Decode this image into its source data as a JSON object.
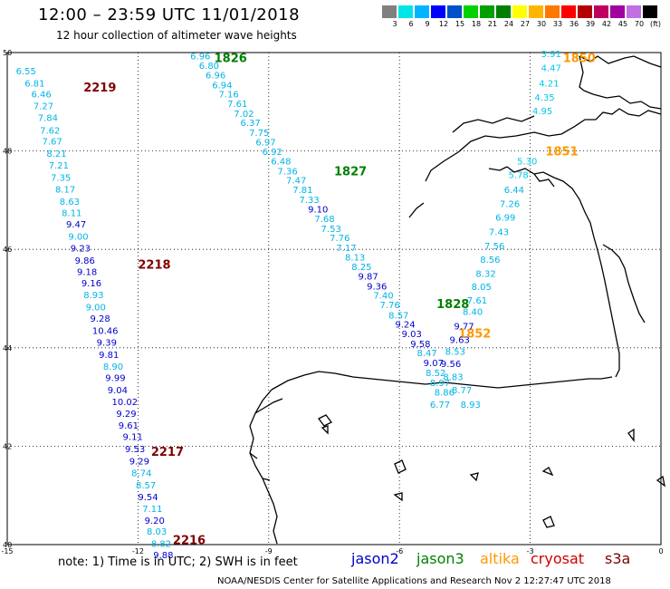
{
  "header": {
    "title": "12:00 – 23:59 UTC 11/01/2018",
    "subtitle": "12 hour collection of altimeter wave heights"
  },
  "color_scale": {
    "labels": [
      "3",
      "6",
      "9",
      "12",
      "15",
      "18",
      "21",
      "24",
      "27",
      "30",
      "33",
      "36",
      "39",
      "42",
      "45",
      "70",
      "(ft)"
    ],
    "colors": [
      "#808080",
      "#00e5e5",
      "#00b4ff",
      "#0000ff",
      "#0050c8",
      "#00d200",
      "#00a000",
      "#008000",
      "#ffff00",
      "#ffb400",
      "#ff7800",
      "#ff0000",
      "#b40000",
      "#c00060",
      "#a000a0",
      "#c070e0",
      "#000000"
    ]
  },
  "axes": {
    "x_ticks": [
      "-15",
      "-12",
      "-9",
      "-6",
      "-3",
      "0"
    ],
    "y_ticks": [
      "50",
      "48",
      "46",
      "44",
      "42",
      "40"
    ],
    "lon_range": [
      -15,
      0
    ],
    "lat_range": [
      40,
      50
    ]
  },
  "colors": {
    "jason2": "#0000cc",
    "jason3": "#008000",
    "altika": "#ff9900",
    "cryosat": "#cc0000",
    "s3a": "#800000"
  },
  "track_times": [
    {
      "label": "2219",
      "satellite": "s3a",
      "lon": -13.25,
      "lat": 49.3
    },
    {
      "label": "2218",
      "satellite": "s3a",
      "lon": -12.0,
      "lat": 45.7
    },
    {
      "label": "2217",
      "satellite": "s3a",
      "lon": -11.7,
      "lat": 41.9
    },
    {
      "label": "2216",
      "satellite": "s3a",
      "lon": -11.2,
      "lat": 40.1
    },
    {
      "label": "1826",
      "satellite": "jason3",
      "lon": -10.25,
      "lat": 49.9
    },
    {
      "label": "1827",
      "satellite": "jason3",
      "lon": -7.5,
      "lat": 47.6
    },
    {
      "label": "1828",
      "satellite": "jason3",
      "lon": -5.15,
      "lat": 44.9
    },
    {
      "label": "1850",
      "satellite": "altika",
      "lon": -2.25,
      "lat": 49.9
    },
    {
      "label": "1851",
      "satellite": "altika",
      "lon": -2.65,
      "lat": 48.0
    },
    {
      "label": "1852",
      "satellite": "altika",
      "lon": -4.65,
      "lat": 44.3
    }
  ],
  "measurements": [
    {
      "v": "6.55",
      "lon": -14.8,
      "lat": 49.63,
      "band": "6"
    },
    {
      "v": "6.81",
      "lon": -14.6,
      "lat": 49.38,
      "band": "6"
    },
    {
      "v": "6.46",
      "lon": -14.45,
      "lat": 49.16,
      "band": "6"
    },
    {
      "v": "7.27",
      "lon": -14.4,
      "lat": 48.92,
      "band": "6"
    },
    {
      "v": "7.84",
      "lon": -14.3,
      "lat": 48.68,
      "band": "6"
    },
    {
      "v": "7.62",
      "lon": -14.25,
      "lat": 48.43,
      "band": "6"
    },
    {
      "v": "7.67",
      "lon": -14.2,
      "lat": 48.2,
      "band": "6"
    },
    {
      "v": "8.21",
      "lon": -14.1,
      "lat": 47.96,
      "band": "6"
    },
    {
      "v": "7.21",
      "lon": -14.05,
      "lat": 47.72,
      "band": "6"
    },
    {
      "v": "7.35",
      "lon": -14.0,
      "lat": 47.47,
      "band": "6"
    },
    {
      "v": "8.17",
      "lon": -13.9,
      "lat": 47.23,
      "band": "6"
    },
    {
      "v": "8.63",
      "lon": -13.8,
      "lat": 46.98,
      "band": "6"
    },
    {
      "v": "8.11",
      "lon": -13.75,
      "lat": 46.75,
      "band": "6"
    },
    {
      "v": "9.47",
      "lon": -13.65,
      "lat": 46.52,
      "band": "9"
    },
    {
      "v": "9.00",
      "lon": -13.6,
      "lat": 46.27,
      "band": "6"
    },
    {
      "v": "9.23",
      "lon": -13.55,
      "lat": 46.03,
      "band": "9"
    },
    {
      "v": "9.86",
      "lon": -13.45,
      "lat": 45.78,
      "band": "9"
    },
    {
      "v": "9.18",
      "lon": -13.4,
      "lat": 45.55,
      "band": "9"
    },
    {
      "v": "9.16",
      "lon": -13.3,
      "lat": 45.32,
      "band": "9"
    },
    {
      "v": "8.93",
      "lon": -13.25,
      "lat": 45.08,
      "band": "6"
    },
    {
      "v": "9.00",
      "lon": -13.2,
      "lat": 44.83,
      "band": "6"
    },
    {
      "v": "9.28",
      "lon": -13.1,
      "lat": 44.6,
      "band": "9"
    },
    {
      "v": "10.46",
      "lon": -13.05,
      "lat": 44.36,
      "band": "9"
    },
    {
      "v": "9.39",
      "lon": -12.95,
      "lat": 44.12,
      "band": "9"
    },
    {
      "v": "9.81",
      "lon": -12.9,
      "lat": 43.87,
      "band": "9"
    },
    {
      "v": "8.90",
      "lon": -12.8,
      "lat": 43.63,
      "band": "6"
    },
    {
      "v": "9.99",
      "lon": -12.75,
      "lat": 43.4,
      "band": "9"
    },
    {
      "v": "9.04",
      "lon": -12.7,
      "lat": 43.15,
      "band": "9"
    },
    {
      "v": "10.02",
      "lon": -12.6,
      "lat": 42.91,
      "band": "9"
    },
    {
      "v": "9.29",
      "lon": -12.5,
      "lat": 42.67,
      "band": "9"
    },
    {
      "v": "9.61",
      "lon": -12.45,
      "lat": 42.43,
      "band": "9"
    },
    {
      "v": "9.11",
      "lon": -12.35,
      "lat": 42.2,
      "band": "9"
    },
    {
      "v": "9.53",
      "lon": -12.3,
      "lat": 41.95,
      "band": "9"
    },
    {
      "v": "9.29",
      "lon": -12.2,
      "lat": 41.7,
      "band": "9"
    },
    {
      "v": "8.74",
      "lon": -12.15,
      "lat": 41.46,
      "band": "6"
    },
    {
      "v": "8.57",
      "lon": -12.05,
      "lat": 41.22,
      "band": "6"
    },
    {
      "v": "9.54",
      "lon": -12.0,
      "lat": 40.98,
      "band": "9"
    },
    {
      "v": "7.11",
      "lon": -11.9,
      "lat": 40.74,
      "band": "6"
    },
    {
      "v": "9.20",
      "lon": -11.85,
      "lat": 40.5,
      "band": "9"
    },
    {
      "v": "8.03",
      "lon": -11.8,
      "lat": 40.28,
      "band": "6"
    },
    {
      "v": "8.82",
      "lon": -11.7,
      "lat": 40.03,
      "band": "6"
    },
    {
      "v": "9.88",
      "lon": -11.65,
      "lat": 39.8,
      "band": "9"
    },
    {
      "v": "6.96",
      "lon": -10.8,
      "lat": 49.94,
      "band": "6"
    },
    {
      "v": "6.80",
      "lon": -10.6,
      "lat": 49.74,
      "band": "6"
    },
    {
      "v": "6.96",
      "lon": -10.45,
      "lat": 49.55,
      "band": "6"
    },
    {
      "v": "6.94",
      "lon": -10.3,
      "lat": 49.35,
      "band": "6"
    },
    {
      "v": "7.16",
      "lon": -10.15,
      "lat": 49.16,
      "band": "6"
    },
    {
      "v": "7.61",
      "lon": -9.95,
      "lat": 48.97,
      "band": "6"
    },
    {
      "v": "7.02",
      "lon": -9.8,
      "lat": 48.77,
      "band": "6"
    },
    {
      "v": "6.37",
      "lon": -9.65,
      "lat": 48.58,
      "band": "6"
    },
    {
      "v": "7.75",
      "lon": -9.45,
      "lat": 48.38,
      "band": "6"
    },
    {
      "v": "6.97",
      "lon": -9.3,
      "lat": 48.19,
      "band": "6"
    },
    {
      "v": "6.92",
      "lon": -9.15,
      "lat": 47.99,
      "band": "6"
    },
    {
      "v": "6.48",
      "lon": -8.95,
      "lat": 47.8,
      "band": "6"
    },
    {
      "v": "7.36",
      "lon": -8.8,
      "lat": 47.6,
      "band": "6"
    },
    {
      "v": "7.47",
      "lon": -8.6,
      "lat": 47.41,
      "band": "6"
    },
    {
      "v": "7.81",
      "lon": -8.45,
      "lat": 47.22,
      "band": "6"
    },
    {
      "v": "7.33",
      "lon": -8.3,
      "lat": 47.02,
      "band": "6"
    },
    {
      "v": "9.10",
      "lon": -8.1,
      "lat": 46.82,
      "band": "9"
    },
    {
      "v": "7.68",
      "lon": -7.95,
      "lat": 46.63,
      "band": "6"
    },
    {
      "v": "7.53",
      "lon": -7.8,
      "lat": 46.43,
      "band": "6"
    },
    {
      "v": "7.76",
      "lon": -7.6,
      "lat": 46.24,
      "band": "6"
    },
    {
      "v": "7.17",
      "lon": -7.45,
      "lat": 46.04,
      "band": "6"
    },
    {
      "v": "8.13",
      "lon": -7.25,
      "lat": 45.85,
      "band": "6"
    },
    {
      "v": "8.25",
      "lon": -7.1,
      "lat": 45.65,
      "band": "6"
    },
    {
      "v": "9.87",
      "lon": -6.95,
      "lat": 45.46,
      "band": "9"
    },
    {
      "v": "9.36",
      "lon": -6.75,
      "lat": 45.26,
      "band": "9"
    },
    {
      "v": "7.40",
      "lon": -6.6,
      "lat": 45.07,
      "band": "6"
    },
    {
      "v": "7.76",
      "lon": -6.45,
      "lat": 44.88,
      "band": "6"
    },
    {
      "v": "8.57",
      "lon": -6.25,
      "lat": 44.67,
      "band": "6"
    },
    {
      "v": "9.24",
      "lon": -6.1,
      "lat": 44.48,
      "band": "9"
    },
    {
      "v": "9.03",
      "lon": -5.95,
      "lat": 44.29,
      "band": "9"
    },
    {
      "v": "9.58",
      "lon": -5.75,
      "lat": 44.09,
      "band": "9"
    },
    {
      "v": "8.47",
      "lon": -5.6,
      "lat": 43.9,
      "band": "6"
    },
    {
      "v": "9.07",
      "lon": -5.45,
      "lat": 43.7,
      "band": "9"
    },
    {
      "v": "8.52",
      "lon": -5.4,
      "lat": 43.5,
      "band": "6"
    },
    {
      "v": "8.97",
      "lon": -5.3,
      "lat": 43.3,
      "band": "6"
    },
    {
      "v": "8.86",
      "lon": -5.2,
      "lat": 43.1,
      "band": "6"
    },
    {
      "v": "6.77",
      "lon": -5.3,
      "lat": 42.85,
      "band": "6"
    },
    {
      "v": "3.91",
      "lon": -2.75,
      "lat": 49.98,
      "band": "3"
    },
    {
      "v": "4.47",
      "lon": -2.75,
      "lat": 49.7,
      "band": "3"
    },
    {
      "v": "4.21",
      "lon": -2.8,
      "lat": 49.38,
      "band": "3"
    },
    {
      "v": "4.35",
      "lon": -2.9,
      "lat": 49.1,
      "band": "3"
    },
    {
      "v": "4.95",
      "lon": -2.95,
      "lat": 48.82,
      "band": "3"
    },
    {
      "v": "5.30",
      "lon": -3.3,
      "lat": 47.8,
      "band": "3"
    },
    {
      "v": "5.78",
      "lon": -3.5,
      "lat": 47.52,
      "band": "3"
    },
    {
      "v": "6.44",
      "lon": -3.6,
      "lat": 47.22,
      "band": "6"
    },
    {
      "v": "7.26",
      "lon": -3.7,
      "lat": 46.93,
      "band": "6"
    },
    {
      "v": "6.99",
      "lon": -3.8,
      "lat": 46.66,
      "band": "6"
    },
    {
      "v": "7.43",
      "lon": -3.95,
      "lat": 46.36,
      "band": "6"
    },
    {
      "v": "7.56",
      "lon": -4.05,
      "lat": 46.08,
      "band": "6"
    },
    {
      "v": "8.56",
      "lon": -4.15,
      "lat": 45.8,
      "band": "6"
    },
    {
      "v": "8.32",
      "lon": -4.25,
      "lat": 45.52,
      "band": "6"
    },
    {
      "v": "8.05",
      "lon": -4.35,
      "lat": 45.25,
      "band": "6"
    },
    {
      "v": "7.61",
      "lon": -4.45,
      "lat": 44.97,
      "band": "6"
    },
    {
      "v": "8.40",
      "lon": -4.55,
      "lat": 44.74,
      "band": "6"
    },
    {
      "v": "9.77",
      "lon": -4.75,
      "lat": 44.45,
      "band": "9"
    },
    {
      "v": "9.63",
      "lon": -4.85,
      "lat": 44.17,
      "band": "9"
    },
    {
      "v": "8.53",
      "lon": -4.95,
      "lat": 43.93,
      "band": "6"
    },
    {
      "v": "9.56",
      "lon": -5.05,
      "lat": 43.68,
      "band": "9"
    },
    {
      "v": "8.83",
      "lon": -5.0,
      "lat": 43.42,
      "band": "6"
    },
    {
      "v": "8.77",
      "lon": -4.8,
      "lat": 43.15,
      "band": "6"
    },
    {
      "v": "8.93",
      "lon": -4.6,
      "lat": 42.85,
      "band": "6"
    }
  ],
  "legend": {
    "note": "note:  1) Time is in UTC;  2) SWH is in feet",
    "items": [
      {
        "label": "jason2",
        "color": "#0000cc"
      },
      {
        "label": "jason3",
        "color": "#008000"
      },
      {
        "label": "altika",
        "color": "#ff9900"
      },
      {
        "label": "cryosat",
        "color": "#cc0000"
      },
      {
        "label": "s3a",
        "color": "#800000"
      }
    ]
  },
  "footer": "NOAA/NESDIS Center for Satellite Applications and Research     Nov  2 12:27:47 UTC 2018"
}
